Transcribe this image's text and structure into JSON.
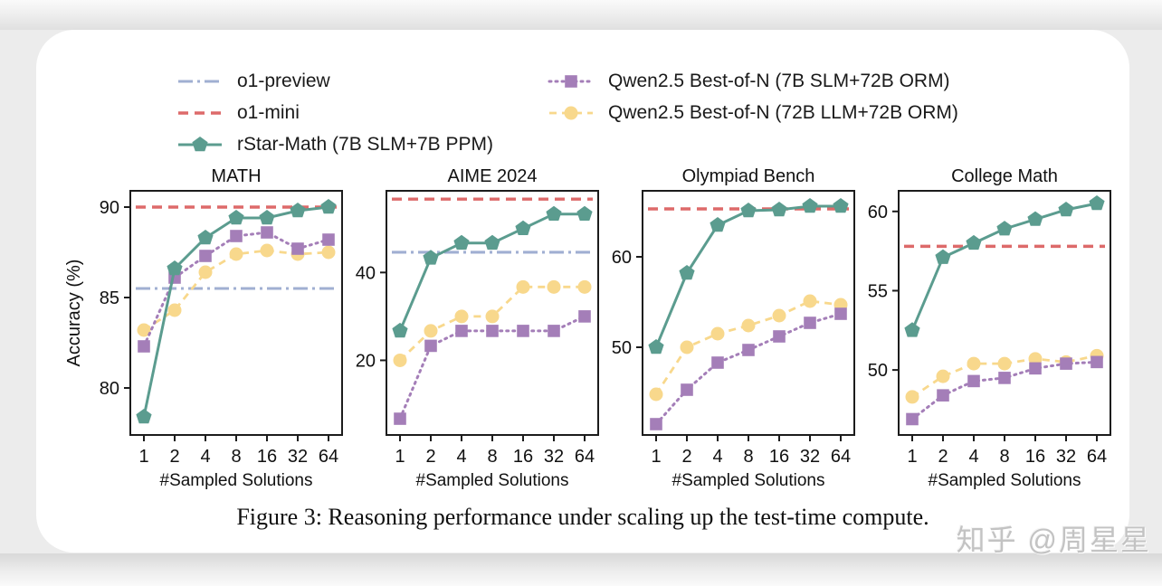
{
  "caption": "Figure 3: Reasoning performance under scaling up the test-time compute.",
  "watermark": {
    "brand": "知乎",
    "handle": "@周星星"
  },
  "colors": {
    "o1_preview": "#a0afd2",
    "o1_mini": "#dd6a6a",
    "rstar": "#5b9c8f",
    "qwen_7b": "#a47eb8",
    "qwen_72b": "#f8d88c",
    "axis": "#1c1c1c",
    "text": "#111111",
    "card_bg": "#ffffff"
  },
  "legend": {
    "items": [
      {
        "id": "o1-preview",
        "label": "o1-preview",
        "series": "o1_preview",
        "column": 0
      },
      {
        "id": "o1-mini",
        "label": "o1-mini",
        "series": "o1_mini",
        "column": 0
      },
      {
        "id": "rstar-math",
        "label": "rStar-Math (7B SLM+7B PPM)",
        "series": "rstar",
        "column": 0
      },
      {
        "id": "qwen-bon-7b",
        "label": "Qwen2.5 Best-of-N (7B SLM+72B ORM)",
        "series": "qwen_7b",
        "column": 1
      },
      {
        "id": "qwen-bon-72b",
        "label": "Qwen2.5 Best-of-N (72B LLM+72B ORM)",
        "series": "qwen_72b",
        "column": 1
      }
    ]
  },
  "chart_data": {
    "type": "line",
    "x": [
      1,
      2,
      4,
      8,
      16,
      32,
      64
    ],
    "xscale": "log2-categorical",
    "xlabel": "#Sampled Solutions",
    "ylabel": "Accuracy (%)",
    "grid": false,
    "legend_position": "top",
    "series_labels": {
      "o1_preview": "o1-preview",
      "o1_mini": "o1-mini",
      "rstar": "rStar-Math (7B SLM+7B PPM)",
      "qwen_7b": "Qwen2.5 Best-of-N (7B SLM+72B ORM)",
      "qwen_72b": "Qwen2.5 Best-of-N (72B LLM+72B ORM)"
    },
    "panels": [
      {
        "id": "math",
        "title": "MATH",
        "ylim": [
          77.4,
          90.9
        ],
        "yticks": [
          80,
          85,
          90
        ],
        "hlines": {
          "o1_preview": 85.5,
          "o1_mini": 90.0
        },
        "series": {
          "qwen_72b": [
            83.2,
            84.3,
            86.4,
            87.4,
            87.6,
            87.4,
            87.5
          ],
          "qwen_7b": [
            82.3,
            86.1,
            87.3,
            88.4,
            88.6,
            87.7,
            88.2
          ],
          "rstar": [
            78.4,
            86.6,
            88.3,
            89.4,
            89.4,
            89.8,
            90.0
          ]
        }
      },
      {
        "id": "aime-2024",
        "title": "AIME 2024",
        "ylim": [
          3.0,
          58.6
        ],
        "yticks": [
          20,
          40
        ],
        "hlines": {
          "o1_preview": 44.6,
          "o1_mini": 56.7
        },
        "series": {
          "qwen_72b": [
            20.0,
            26.7,
            30.0,
            30.0,
            36.7,
            36.7,
            36.7
          ],
          "qwen_7b": [
            6.7,
            23.3,
            26.7,
            26.7,
            26.7,
            26.7,
            30.0
          ],
          "rstar": [
            26.7,
            43.3,
            46.7,
            46.7,
            50.0,
            53.3,
            53.3
          ]
        }
      },
      {
        "id": "olympiad-bench",
        "title": "Olympiad Bench",
        "ylim": [
          40.3,
          67.3
        ],
        "yticks": [
          50,
          60
        ],
        "hlines": {
          "o1_mini": 65.3
        },
        "series": {
          "qwen_72b": [
            44.8,
            50.0,
            51.5,
            52.4,
            53.5,
            55.1,
            54.7
          ],
          "qwen_7b": [
            41.5,
            45.3,
            48.3,
            49.7,
            51.2,
            52.7,
            53.7
          ],
          "rstar": [
            50.0,
            58.2,
            63.5,
            65.1,
            65.2,
            65.6,
            65.6
          ]
        }
      },
      {
        "id": "college-math",
        "title": "College Math",
        "ylim": [
          45.9,
          61.3
        ],
        "yticks": [
          50,
          55,
          60
        ],
        "hlines": {
          "o1_mini": 57.8
        },
        "series": {
          "qwen_72b": [
            48.3,
            49.6,
            50.4,
            50.4,
            50.7,
            50.5,
            50.9
          ],
          "qwen_7b": [
            46.9,
            48.4,
            49.3,
            49.5,
            50.1,
            50.4,
            50.5
          ],
          "rstar": [
            52.5,
            57.1,
            58.0,
            58.9,
            59.5,
            60.1,
            60.5
          ]
        }
      }
    ]
  }
}
